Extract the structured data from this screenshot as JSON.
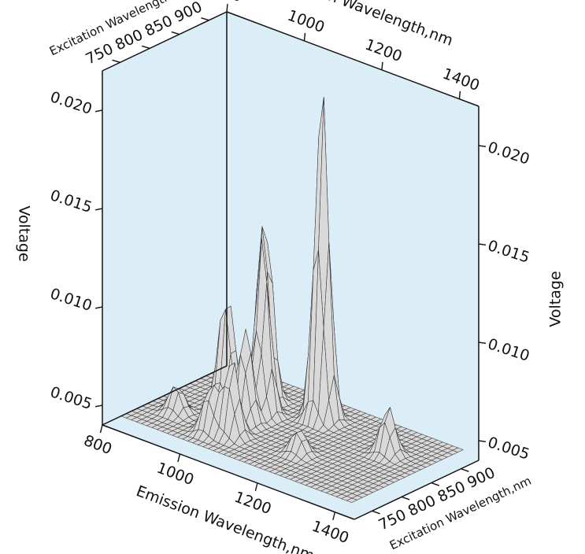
{
  "chart_data": {
    "type": "surface3d",
    "title": "",
    "axes": {
      "x": {
        "label": "Emission Wavelength,nm",
        "range": [
          800,
          1450
        ],
        "ticks": [
          800,
          1000,
          1200,
          1400
        ],
        "tick_labels": [
          "800",
          "1000",
          "1200",
          "1400"
        ]
      },
      "y": {
        "label": "Excitation Wavelength,nm",
        "range": [
          720,
          930
        ],
        "ticks": [
          750,
          800,
          850,
          900
        ],
        "tick_labels": [
          "750",
          "800",
          "850",
          "900"
        ]
      },
      "z": {
        "label": "Voltage",
        "range": [
          0.004,
          0.022
        ],
        "ticks": [
          0.005,
          0.01,
          0.015,
          0.02
        ],
        "tick_labels": [
          "0.005",
          "0.010",
          "0.015",
          "0.020"
        ]
      }
    },
    "background_color": "#dbeef7",
    "surface_color": "#d9d9d9",
    "mesh_color": "#333333",
    "baseline": 0.0045,
    "peaks": [
      {
        "emission": 1130,
        "excitation": 875,
        "voltage": 0.0215
      },
      {
        "emission": 990,
        "excitation": 870,
        "voltage": 0.0145
      },
      {
        "emission": 1030,
        "excitation": 840,
        "voltage": 0.0135
      },
      {
        "emission": 945,
        "excitation": 835,
        "voltage": 0.0105
      },
      {
        "emission": 1030,
        "excitation": 810,
        "voltage": 0.0095
      },
      {
        "emission": 1050,
        "excitation": 775,
        "voltage": 0.0085
      },
      {
        "emission": 1010,
        "excitation": 765,
        "voltage": 0.007
      },
      {
        "emission": 1330,
        "excitation": 855,
        "voltage": 0.007
      },
      {
        "emission": 1200,
        "excitation": 790,
        "voltage": 0.0058
      },
      {
        "emission": 900,
        "excitation": 780,
        "voltage": 0.006
      }
    ]
  }
}
